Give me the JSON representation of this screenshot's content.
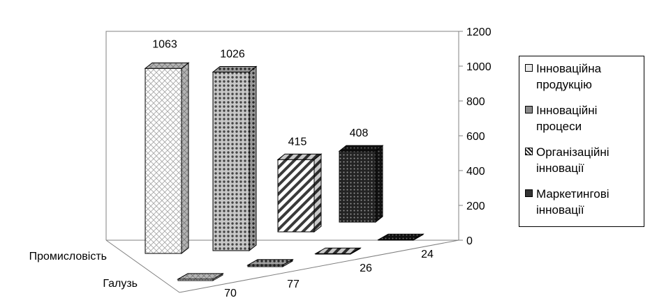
{
  "chart_data": {
    "type": "bar",
    "subtype": "3d-clustered-column",
    "categories": [
      "Промисловість",
      "Галузь"
    ],
    "series": [
      {
        "name": "Інноваційна продукцію",
        "values": [
          1063,
          70
        ],
        "pattern": "diagonal-crosshatch"
      },
      {
        "name": "Інноваційні процеси",
        "values": [
          1026,
          77
        ],
        "pattern": "dotted-grid"
      },
      {
        "name": "Організаційні інновації",
        "values": [
          415,
          26
        ],
        "pattern": "diagonal-stripes"
      },
      {
        "name": "Маркетингові інновації",
        "values": [
          408,
          24
        ],
        "pattern": "dark-dots"
      }
    ],
    "y_ticks": [
      "0",
      "200",
      "400",
      "600",
      "800",
      "1000",
      "1200"
    ],
    "ylim": [
      0,
      1200
    ],
    "title": "",
    "xlabel": "",
    "ylabel": "",
    "grid": false,
    "legend_position": "right"
  },
  "colors": {
    "axis": "#808080",
    "edge": "#000000",
    "background": "#ffffff"
  }
}
